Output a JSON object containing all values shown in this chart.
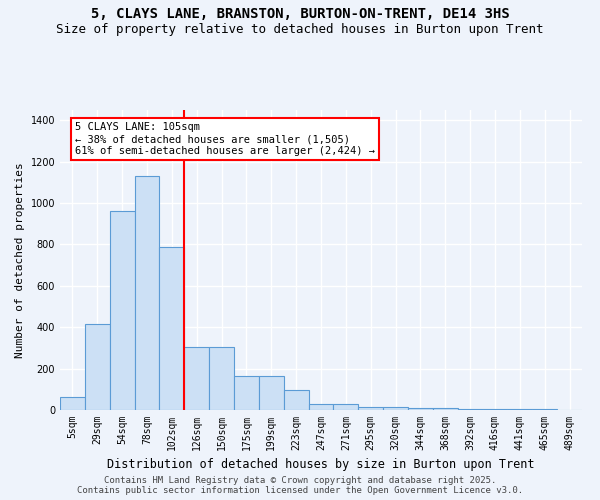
{
  "title": "5, CLAYS LANE, BRANSTON, BURTON-ON-TRENT, DE14 3HS",
  "subtitle": "Size of property relative to detached houses in Burton upon Trent",
  "xlabel": "Distribution of detached houses by size in Burton upon Trent",
  "ylabel": "Number of detached properties",
  "footer_line1": "Contains HM Land Registry data © Crown copyright and database right 2025.",
  "footer_line2": "Contains public sector information licensed under the Open Government Licence v3.0.",
  "bin_labels": [
    "5sqm",
    "29sqm",
    "54sqm",
    "78sqm",
    "102sqm",
    "126sqm",
    "150sqm",
    "175sqm",
    "199sqm",
    "223sqm",
    "247sqm",
    "271sqm",
    "295sqm",
    "320sqm",
    "344sqm",
    "368sqm",
    "392sqm",
    "416sqm",
    "441sqm",
    "465sqm",
    "489sqm"
  ],
  "bar_values": [
    65,
    415,
    960,
    1130,
    790,
    305,
    305,
    165,
    165,
    95,
    30,
    30,
    15,
    15,
    10,
    10,
    5,
    5,
    5,
    5,
    0
  ],
  "bar_color": "#cce0f5",
  "bar_edge_color": "#5b9bd5",
  "background_color": "#eef3fb",
  "grid_color": "#ffffff",
  "vline_color": "red",
  "annotation_text": "5 CLAYS LANE: 105sqm\n← 38% of detached houses are smaller (1,505)\n61% of semi-detached houses are larger (2,424) →",
  "annotation_box_color": "white",
  "annotation_box_edge": "red",
  "ylim": [
    0,
    1450
  ],
  "title_fontsize": 10,
  "subtitle_fontsize": 9,
  "xlabel_fontsize": 8.5,
  "ylabel_fontsize": 8,
  "tick_fontsize": 7,
  "annotation_fontsize": 7.5,
  "footer_fontsize": 6.5
}
